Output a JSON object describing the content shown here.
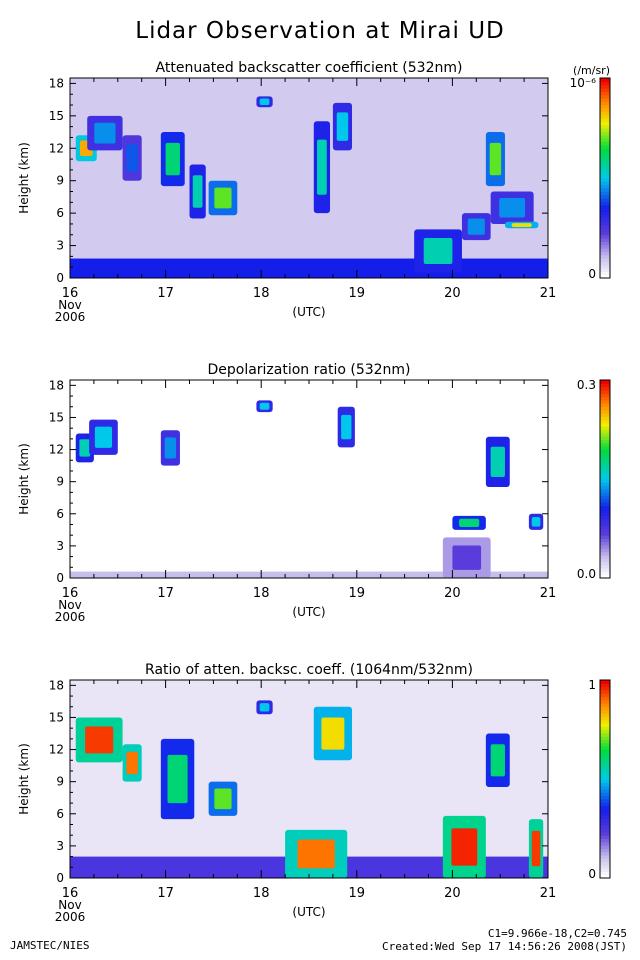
{
  "page": {
    "title": "Lidar Observation at Mirai UD",
    "footer_left": "JAMSTEC/NIES",
    "footer_right_line1": "C1=9.966e-18,C2=0.745",
    "footer_right_line2": "Created:Wed Sep 17 14:56:26 2008(JST)"
  },
  "chart_data": [
    {
      "type": "heatmap",
      "title": "Attenuated backscatter coefficient (532nm)",
      "ylabel": "Height (km)",
      "xlabel": "(UTC)",
      "x_ticks": [
        "16",
        "17",
        "18",
        "19",
        "20",
        "21"
      ],
      "x_subticks": [
        "Nov",
        "2006"
      ],
      "y_ticks": [
        "0",
        "3",
        "6",
        "9",
        "12",
        "15",
        "18"
      ],
      "xlim": [
        16,
        21
      ],
      "ylim": [
        0,
        18.5
      ],
      "colorbar_min_label": "0",
      "colorbar_max_label": "10⁻⁶",
      "colorbar_unit": "(/m/sr)",
      "colorbar_max": 1
    },
    {
      "type": "heatmap",
      "title": "Depolarization ratio (532nm)",
      "ylabel": "Height (km)",
      "xlabel": "(UTC)",
      "x_ticks": [
        "16",
        "17",
        "18",
        "19",
        "20",
        "21"
      ],
      "x_subticks": [
        "Nov",
        "2006"
      ],
      "y_ticks": [
        "0",
        "3",
        "6",
        "9",
        "12",
        "15",
        "18"
      ],
      "xlim": [
        16,
        21
      ],
      "ylim": [
        0,
        18.5
      ],
      "colorbar_min_label": "0.0",
      "colorbar_max_label": "0.3",
      "colorbar_unit": "",
      "colorbar_max": 0.3
    },
    {
      "type": "heatmap",
      "title": "Ratio of atten. backsc. coeff. (1064nm/532nm)",
      "ylabel": "Height (km)",
      "xlabel": "(UTC)",
      "x_ticks": [
        "16",
        "17",
        "18",
        "19",
        "20",
        "21"
      ],
      "x_subticks": [
        "Nov",
        "2006"
      ],
      "y_ticks": [
        "0",
        "3",
        "6",
        "9",
        "12",
        "15",
        "18"
      ],
      "xlim": [
        16,
        21
      ],
      "ylim": [
        0,
        18.5
      ],
      "colorbar_min_label": "0",
      "colorbar_max_label": "1",
      "colorbar_unit": "",
      "colorbar_max": 1
    }
  ],
  "features": [
    {
      "clouds": [
        {
          "x0": 16.06,
          "x1": 16.28,
          "y0": 10.8,
          "y1": 13.2,
          "v": 0.85
        },
        {
          "x0": 16.18,
          "x1": 16.55,
          "y0": 11.8,
          "y1": 15.0,
          "v": 0.45
        },
        {
          "x0": 16.55,
          "x1": 16.75,
          "y0": 9.0,
          "y1": 13.2,
          "v": 0.4
        },
        {
          "x0": 16.95,
          "x1": 17.2,
          "y0": 8.5,
          "y1": 13.5,
          "v": 0.6
        },
        {
          "x0": 17.25,
          "x1": 17.42,
          "y0": 5.5,
          "y1": 10.5,
          "v": 0.55
        },
        {
          "x0": 17.45,
          "x1": 17.75,
          "y0": 5.8,
          "y1": 9.0,
          "v": 0.7
        },
        {
          "x0": 17.95,
          "x1": 18.12,
          "y0": 15.8,
          "y1": 16.8,
          "v": 0.5
        },
        {
          "x0": 18.55,
          "x1": 18.72,
          "y0": 6.0,
          "y1": 14.5,
          "v": 0.55
        },
        {
          "x0": 18.75,
          "x1": 18.95,
          "y0": 11.8,
          "y1": 16.2,
          "v": 0.5
        },
        {
          "x0": 20.35,
          "x1": 20.55,
          "y0": 8.5,
          "y1": 13.5,
          "v": 0.7
        },
        {
          "x0": 20.4,
          "x1": 20.85,
          "y0": 5.0,
          "y1": 8.0,
          "v": 0.45
        },
        {
          "x0": 20.55,
          "x1": 20.9,
          "y0": 4.6,
          "y1": 5.2,
          "v": 0.8
        },
        {
          "x0": 19.6,
          "x1": 20.1,
          "y0": 0.5,
          "y1": 4.5,
          "v": 0.55
        },
        {
          "x0": 20.1,
          "x1": 20.4,
          "y0": 3.5,
          "y1": 6.0,
          "v": 0.45
        }
      ],
      "boundary_layer": {
        "y0": 0,
        "y1": 1.8,
        "v": 0.35
      },
      "background": 0.08
    },
    {
      "clouds": [
        {
          "x0": 16.06,
          "x1": 16.25,
          "y0": 10.8,
          "y1": 13.5,
          "v": 0.55
        },
        {
          "x0": 16.2,
          "x1": 16.5,
          "y0": 11.5,
          "y1": 14.8,
          "v": 0.5
        },
        {
          "x0": 16.95,
          "x1": 17.15,
          "y0": 10.5,
          "y1": 13.8,
          "v": 0.45
        },
        {
          "x0": 17.95,
          "x1": 18.12,
          "y0": 15.5,
          "y1": 16.6,
          "v": 0.5
        },
        {
          "x0": 18.8,
          "x1": 18.98,
          "y0": 12.2,
          "y1": 16.0,
          "v": 0.5
        },
        {
          "x0": 20.35,
          "x1": 20.6,
          "y0": 8.5,
          "y1": 13.2,
          "v": 0.55
        },
        {
          "x0": 20.0,
          "x1": 20.35,
          "y0": 4.5,
          "y1": 5.8,
          "v": 0.6
        },
        {
          "x0": 19.9,
          "x1": 20.4,
          "y0": 0.0,
          "y1": 3.8,
          "v": 0.22
        },
        {
          "x0": 20.8,
          "x1": 20.95,
          "y0": 4.5,
          "y1": 6.0,
          "v": 0.5
        }
      ],
      "boundary_layer": {
        "y0": 0,
        "y1": 0.6,
        "v": 0.1
      },
      "background": 0.0
    },
    {
      "clouds": [
        {
          "x0": 16.06,
          "x1": 16.55,
          "y0": 10.8,
          "y1": 15.0,
          "v": 0.95
        },
        {
          "x0": 16.55,
          "x1": 16.75,
          "y0": 9.0,
          "y1": 12.5,
          "v": 0.9
        },
        {
          "x0": 16.95,
          "x1": 17.3,
          "y0": 5.5,
          "y1": 13.0,
          "v": 0.6
        },
        {
          "x0": 17.45,
          "x1": 17.75,
          "y0": 5.8,
          "y1": 9.0,
          "v": 0.7
        },
        {
          "x0": 17.95,
          "x1": 18.12,
          "y0": 15.3,
          "y1": 16.6,
          "v": 0.5
        },
        {
          "x0": 18.55,
          "x1": 18.95,
          "y0": 11.0,
          "y1": 16.0,
          "v": 0.8
        },
        {
          "x0": 20.35,
          "x1": 20.6,
          "y0": 8.5,
          "y1": 13.5,
          "v": 0.6
        },
        {
          "x0": 19.9,
          "x1": 20.35,
          "y0": 0.0,
          "y1": 5.8,
          "v": 0.97
        },
        {
          "x0": 20.8,
          "x1": 20.95,
          "y0": 0.0,
          "y1": 5.5,
          "v": 0.95
        },
        {
          "x0": 18.25,
          "x1": 18.9,
          "y0": 0.0,
          "y1": 4.5,
          "v": 0.9
        }
      ],
      "boundary_layer": {
        "y0": 0,
        "y1": 2.0,
        "v": 0.25
      },
      "background": 0.04
    }
  ]
}
